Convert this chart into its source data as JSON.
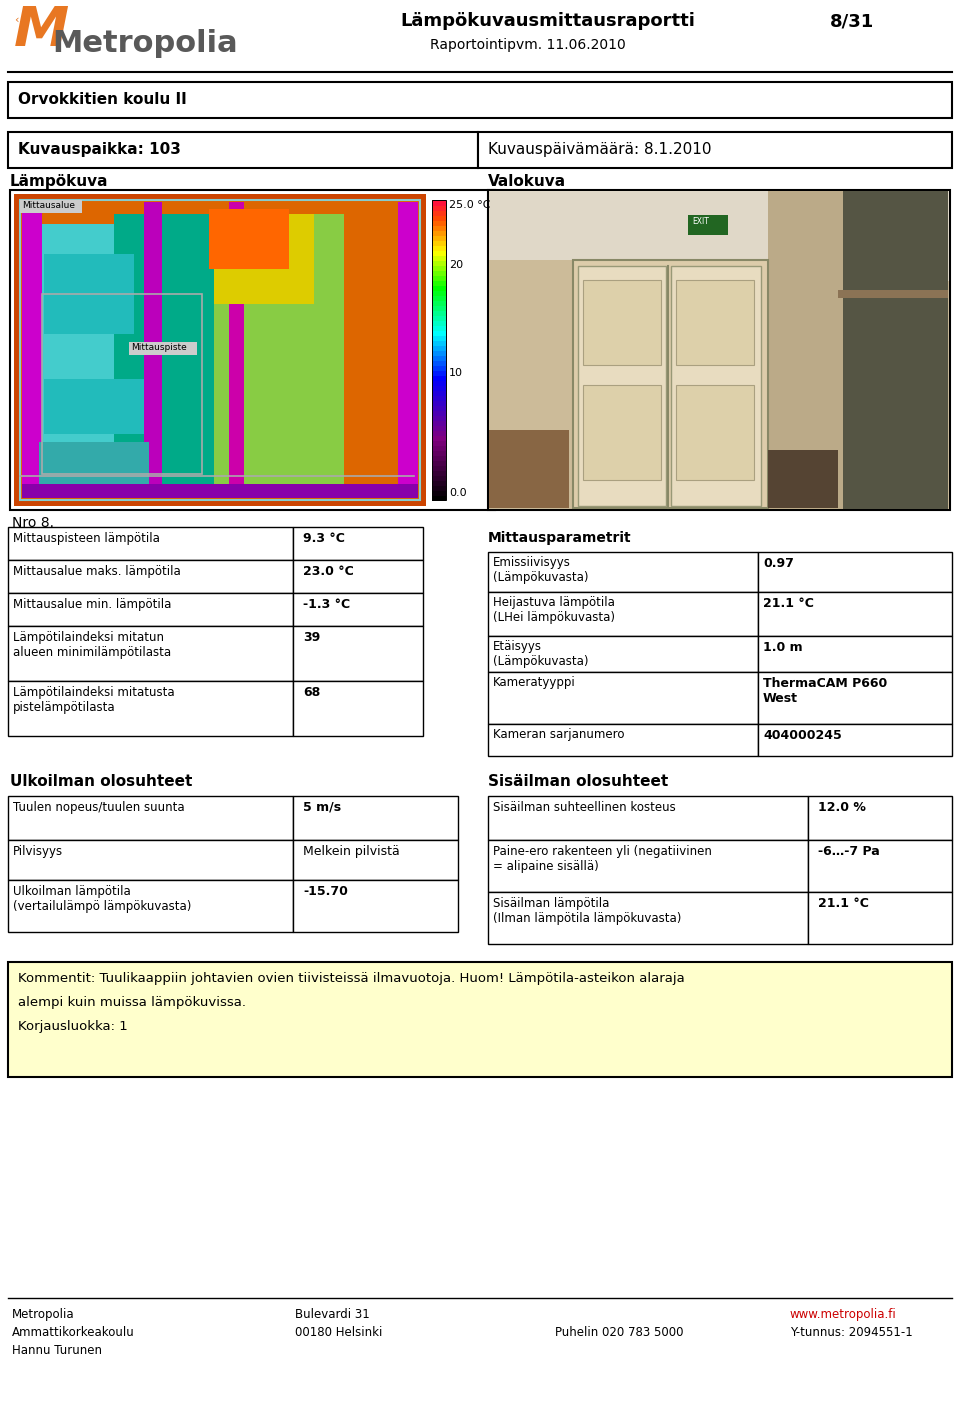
{
  "page_title": "Lämpökuvausmittausraportti",
  "page_num": "8/31",
  "report_date_label": "Raportointipvm. 11.06.2010",
  "school_name": "Orvokkitien koulu II",
  "location_label": "Kuvauspaikka: 103",
  "date_label": "Kuvauspäivämäärä: 8.1.2010",
  "lampo_label": "Lämpökuva",
  "valo_label": "Valokuva",
  "nro_label": "Nro 8.",
  "mittaus_params_title": "Mittausparametrit",
  "mittaus_table": [
    [
      "Emissiivisyys\n(Lämpökuvasta)",
      "0.97"
    ],
    [
      "Heijastuva lämpötila\n(LHei lämpökuvasta)",
      "21.1 °C"
    ],
    [
      "Etäisyys\n(Lämpökuvasta)",
      "1.0 m"
    ],
    [
      "Kameratyyppi",
      "ThermaCAM P660\nWest"
    ],
    [
      "Kameran sarjanumero",
      "404000245"
    ]
  ],
  "left_table": [
    [
      "Mittauspisteen lämpötila",
      "9.3 °C"
    ],
    [
      "Mittausalue maks. lämpötila",
      "23.0 °C"
    ],
    [
      "Mittausalue min. lämpötila",
      "-1.3 °C"
    ],
    [
      "Lämpötilaindeksi mitatun\nalueen minimilämpötilasta",
      "39"
    ],
    [
      "Lämpötilaindeksi mitatusta\npistelämpötilasta",
      "68"
    ]
  ],
  "ulko_title": "Ulkoilman olosuhteet",
  "sisa_title": "Sisäilman olosuhteet",
  "ulko_table": [
    [
      "Tuulen nopeus/tuulen suunta",
      "5 m/s"
    ],
    [
      "Pilvisyys",
      "Melkein pilvistä"
    ],
    [
      "Ulkoilman lämpötila\n(vertailulämpö lämpökuvasta)",
      "-15.70"
    ]
  ],
  "sisa_table": [
    [
      "Sisäilman suhteellinen kosteus",
      "12.0 %"
    ],
    [
      "Paine-ero rakenteen yli (negatiivinen\n= alipaine sisällä)",
      "-6…-7 Pa"
    ],
    [
      "Sisäilman lämpötila\n(Ilman lämpötila lämpökuvasta)",
      "21.1 °C"
    ]
  ],
  "comment_text": "Kommentit: Tuulikaappiin johtavien ovien tiivisteissä ilmavuotoja. Huom! Lämpötila-asteikon alaraja\nalempi kuin muissa lämpökuvissa.\nKorjausluokka: 1",
  "footer_col1": [
    "Metropolia",
    "Ammattikorkeakoulu",
    "Hannu Turunen"
  ],
  "footer_col2": [
    "Bulevardi 31",
    "00180 Helsinki"
  ],
  "footer_col3": [
    "Puhelin 020 783 5000"
  ],
  "footer_col4_red": "www.metropolia.fi",
  "footer_col4_black": "Y-tunnus: 2094551-1",
  "bg_color": "#ffffff",
  "red_color": "#cc0000",
  "metropolia_gray": "#595959",
  "metropolia_orange": "#e87722"
}
